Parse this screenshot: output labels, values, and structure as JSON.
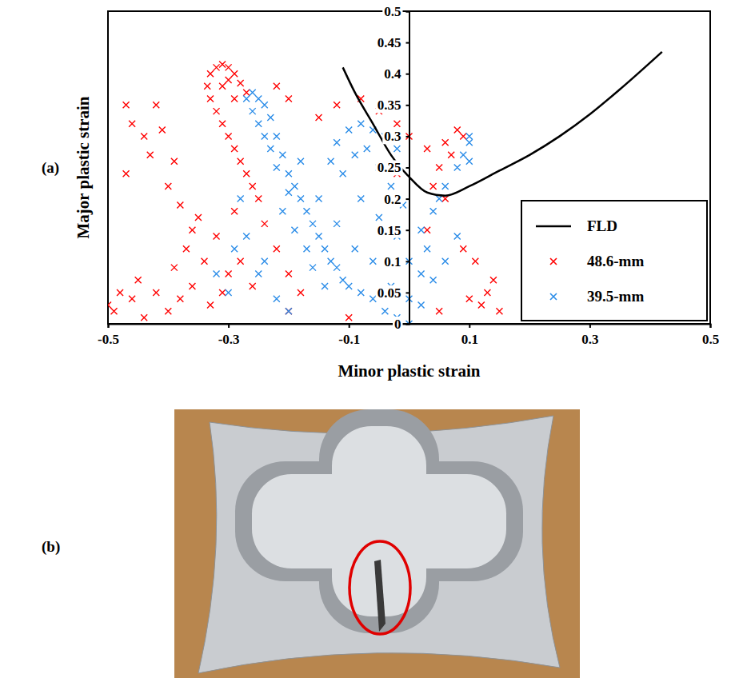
{
  "panel_labels": [
    "(a)",
    "(b)"
  ],
  "chart_data": {
    "type": "scatter",
    "x_label": "Minor plastic strain",
    "y_label": "Major plastic strain",
    "xlim": [
      -0.5,
      0.5
    ],
    "ylim": [
      0,
      0.5
    ],
    "xticks": [
      -0.5,
      -0.3,
      -0.1,
      0.1,
      0.3,
      0.5
    ],
    "yticks": [
      0,
      0.05,
      0.1,
      0.15,
      0.2,
      0.25,
      0.3,
      0.35,
      0.4,
      0.45,
      0.5
    ],
    "grid": false,
    "legend": "bottom-right",
    "series": [
      {
        "name": "FLD",
        "type": "line",
        "color": "#000000",
        "line_style": "solid",
        "x": [
          -0.11,
          -0.09,
          -0.06,
          -0.03,
          0,
          0.03,
          0.06,
          0.1,
          0.15,
          0.2,
          0.25,
          0.3,
          0.35,
          0.42
        ],
        "values": [
          0.41,
          0.37,
          0.32,
          0.27,
          0.235,
          0.21,
          0.205,
          0.22,
          0.245,
          0.27,
          0.3,
          0.335,
          0.375,
          0.435
        ]
      },
      {
        "name": "48.6-mm",
        "type": "scatter",
        "color": "#ff0000",
        "marker": "x",
        "x": [
          -0.33,
          -0.32,
          -0.31,
          -0.3,
          -0.29,
          -0.28,
          -0.335,
          -0.33,
          -0.32,
          -0.31,
          -0.3,
          -0.29,
          -0.28,
          -0.27,
          -0.26,
          -0.25,
          -0.3,
          -0.31,
          -0.29,
          -0.27,
          -0.22,
          -0.2,
          -0.15,
          -0.12,
          -0.08,
          -0.05,
          -0.02,
          0,
          0.03,
          0.06,
          0.08,
          0.09,
          0.07,
          0.05,
          -0.47,
          -0.42,
          -0.46,
          -0.44,
          -0.41,
          -0.43,
          -0.47,
          -0.39,
          -0.4,
          -0.38,
          -0.36,
          -0.35,
          -0.37,
          -0.34,
          -0.39,
          -0.45,
          -0.48,
          -0.5,
          -0.49,
          -0.46,
          -0.42,
          -0.4,
          -0.38,
          -0.36,
          -0.33,
          -0.31,
          -0.44,
          -0.3,
          -0.28,
          -0.26,
          -0.32,
          -0.29,
          -0.2,
          -0.1,
          0.05,
          0.1,
          0.12,
          0.14,
          0.11,
          0.13,
          0.09,
          0.15,
          0.06,
          0.03,
          0.04,
          -0.02,
          -0.24,
          -0.22,
          -0.2,
          -0.18
        ],
        "values": [
          0.4,
          0.41,
          0.415,
          0.41,
          0.4,
          0.385,
          0.38,
          0.36,
          0.34,
          0.32,
          0.3,
          0.28,
          0.26,
          0.24,
          0.22,
          0.2,
          0.39,
          0.38,
          0.36,
          0.37,
          0.38,
          0.36,
          0.33,
          0.35,
          0.36,
          0.34,
          0.32,
          0.3,
          0.28,
          0.29,
          0.31,
          0.3,
          0.27,
          0.25,
          0.35,
          0.35,
          0.32,
          0.3,
          0.31,
          0.27,
          0.24,
          0.26,
          0.22,
          0.19,
          0.15,
          0.17,
          0.12,
          0.1,
          0.09,
          0.07,
          0.05,
          0.03,
          0.02,
          0.04,
          0.05,
          0.02,
          0.04,
          0.06,
          0.03,
          0.05,
          0.01,
          0.08,
          0.1,
          0.06,
          0.14,
          0.18,
          0.02,
          0.01,
          0.02,
          0.04,
          0.03,
          0.07,
          0.1,
          0.05,
          0.12,
          0.02,
          0.2,
          0.15,
          0.22,
          0.24,
          0.16,
          0.12,
          0.08,
          0.05
        ]
      },
      {
        "name": "39.5-mm",
        "type": "scatter",
        "color": "#2a8ce8",
        "marker": "x",
        "x": [
          -0.27,
          -0.26,
          -0.25,
          -0.24,
          -0.26,
          -0.25,
          -0.24,
          -0.23,
          -0.22,
          -0.23,
          -0.21,
          -0.22,
          -0.2,
          -0.19,
          -0.18,
          -0.17,
          -0.2,
          -0.16,
          -0.15,
          -0.14,
          -0.13,
          -0.12,
          -0.11,
          -0.1,
          -0.08,
          -0.06,
          -0.04,
          -0.02,
          0,
          -0.18,
          -0.15,
          -0.12,
          -0.09,
          -0.06,
          -0.03,
          0,
          0.02,
          -0.21,
          -0.19,
          -0.17,
          -0.16,
          -0.14,
          -0.13,
          -0.12,
          -0.1,
          -0.08,
          -0.06,
          -0.04,
          -0.02,
          -0.11,
          -0.09,
          -0.07,
          -0.05,
          -0.03,
          -0.01,
          -0.08,
          -0.05,
          -0.02,
          0,
          0.02,
          0.02,
          0.04,
          0.06,
          0.08,
          0.09,
          0.1,
          0.1,
          0.1,
          0.05,
          0.03,
          0.04,
          0.06,
          0.08,
          -0.27,
          -0.24,
          -0.3,
          -0.22,
          -0.25,
          -0.29,
          -0.2,
          -0.28,
          -0.32
        ],
        "values": [
          0.36,
          0.37,
          0.36,
          0.35,
          0.34,
          0.32,
          0.3,
          0.33,
          0.3,
          0.28,
          0.27,
          0.25,
          0.24,
          0.22,
          0.2,
          0.18,
          0.21,
          0.16,
          0.14,
          0.12,
          0.1,
          0.09,
          0.07,
          0.06,
          0.05,
          0.04,
          0.02,
          0.01,
          0,
          0.26,
          0.2,
          0.16,
          0.12,
          0.1,
          0.06,
          0.04,
          0.03,
          0.18,
          0.15,
          0.12,
          0.09,
          0.06,
          0.26,
          0.29,
          0.31,
          0.32,
          0.31,
          0.3,
          0.28,
          0.24,
          0.27,
          0.28,
          0.25,
          0.22,
          0.19,
          0.2,
          0.17,
          0.14,
          0.1,
          0.08,
          0.15,
          0.18,
          0.22,
          0.25,
          0.27,
          0.29,
          0.3,
          0.26,
          0.2,
          0.12,
          0.07,
          0.1,
          0.14,
          0.14,
          0.1,
          0.05,
          0.04,
          0.08,
          0.12,
          0.02,
          0.2,
          0.08
        ]
      }
    ]
  }
}
